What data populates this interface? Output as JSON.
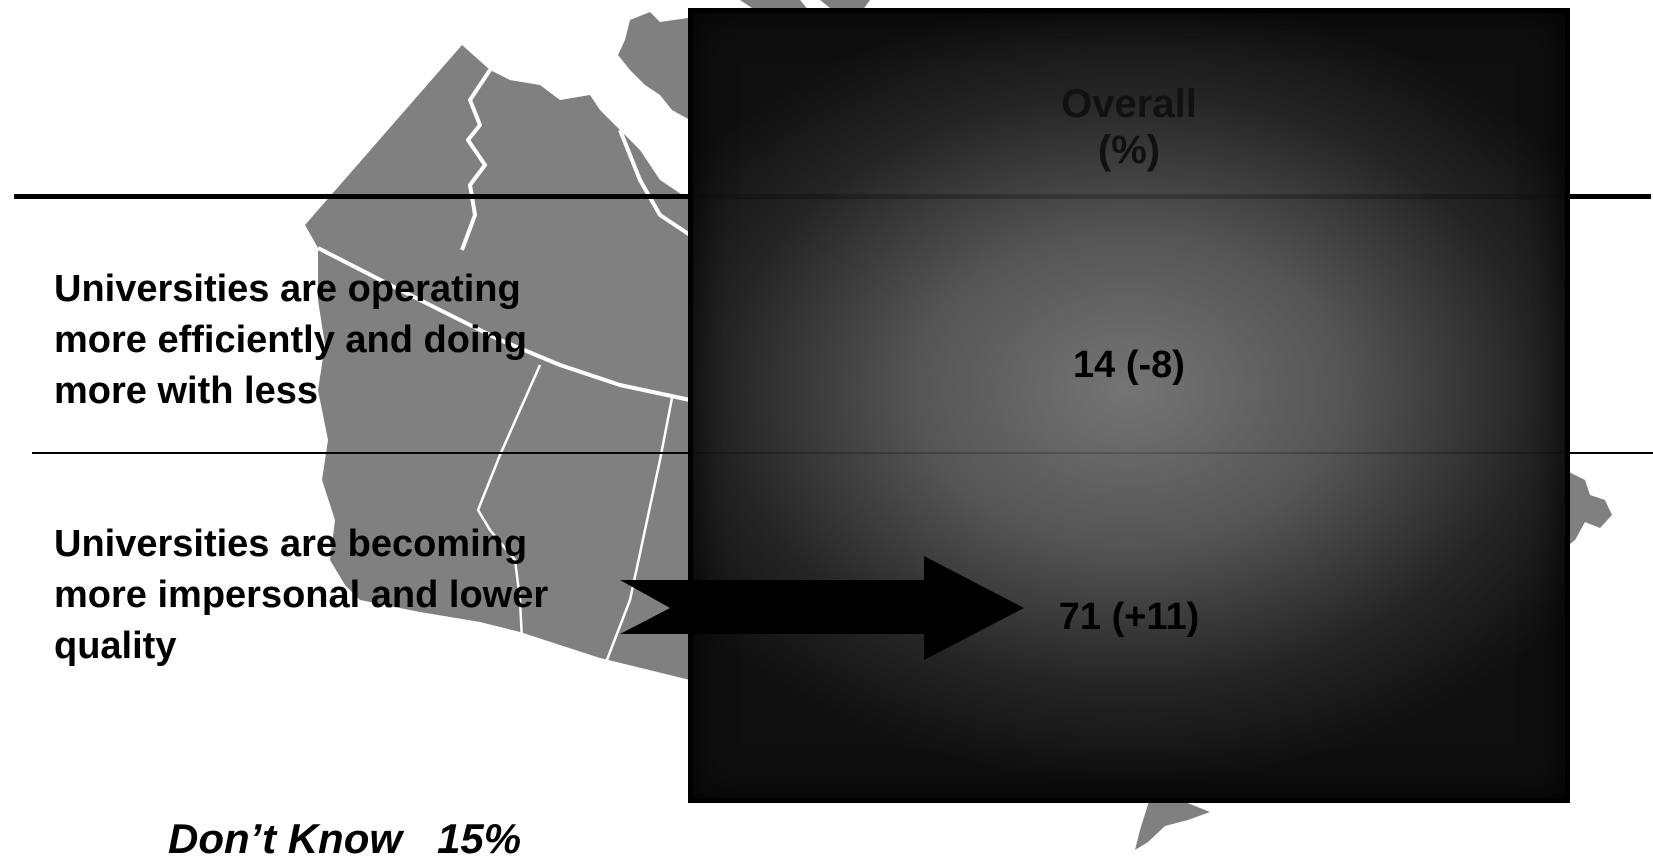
{
  "panel": {
    "header_line1": "Overall",
    "header_line2": "(%)"
  },
  "statements": [
    {
      "label_lines": [
        "Universities are operating",
        "more efficiently and doing",
        "more with less"
      ],
      "value": "14 (-8)"
    },
    {
      "label_lines": [
        "Universities are becoming",
        "more impersonal and lower",
        "quality"
      ],
      "value": "71 (+11)"
    }
  ],
  "dont_know": {
    "label": "Don’t Know",
    "value": "15%"
  },
  "colors": {
    "map_fill": "#808080",
    "map_borders": "#ffffff",
    "panel_dark": "#0f0f0f",
    "text": "#000000"
  }
}
